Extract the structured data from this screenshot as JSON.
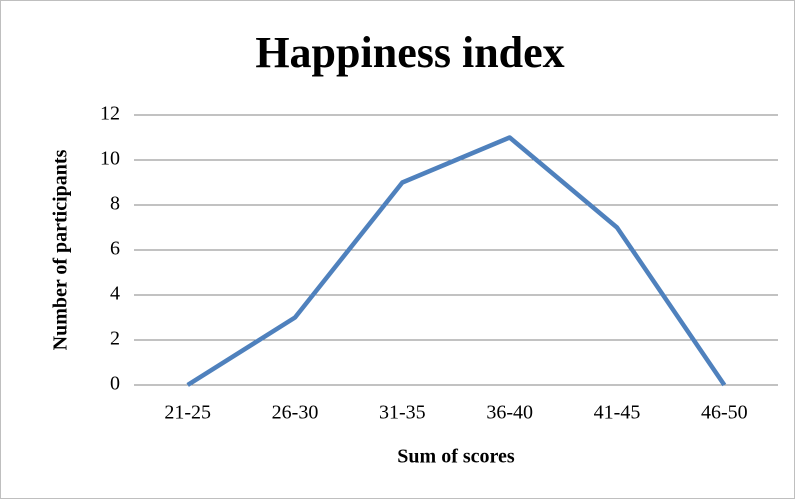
{
  "chart_data": {
    "type": "line",
    "title": "Happiness index",
    "x_label": "Sum of scores",
    "y_label": "Number of participants",
    "categories": [
      "21-25",
      "26-30",
      "31-35",
      "36-40",
      "41-45",
      "46-50"
    ],
    "values": [
      0,
      3,
      9,
      11,
      7,
      0
    ],
    "color": "#4f81bd",
    "ylim": [
      0,
      12
    ],
    "yticks": [
      0,
      2,
      4,
      6,
      8,
      10,
      12
    ],
    "grid": true
  }
}
